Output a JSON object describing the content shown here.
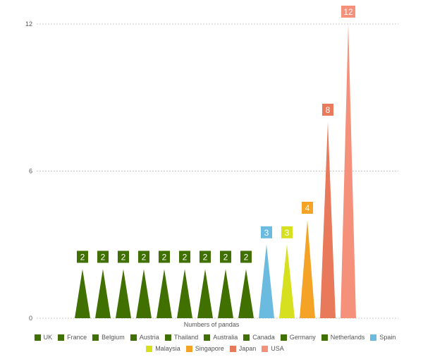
{
  "chart_data": {
    "type": "bar",
    "xlabel": "Numbers of pandas",
    "ylabel": "",
    "ylim": [
      0,
      12
    ],
    "yticks": [
      0,
      6,
      12
    ],
    "grid": true,
    "legend_position": "bottom",
    "categories": [
      "UK",
      "France",
      "Belgium",
      "Austria",
      "Thailand",
      "Australia",
      "Canada",
      "Germany",
      "Netherlands",
      "Spain",
      "Malaysia",
      "Singapore",
      "Japan",
      "USA"
    ],
    "values": [
      2,
      2,
      2,
      2,
      2,
      2,
      2,
      2,
      2,
      3,
      3,
      4,
      8,
      12
    ],
    "colors": [
      "#3f7000",
      "#3f7000",
      "#3f7000",
      "#3f7000",
      "#3f7000",
      "#3f7000",
      "#3f7000",
      "#3f7000",
      "#3f7000",
      "#6bbbe0",
      "#d6e01f",
      "#f4a326",
      "#e8795a",
      "#f5907a"
    ]
  }
}
